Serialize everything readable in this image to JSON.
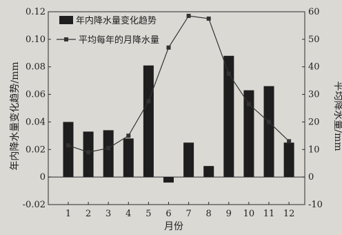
{
  "chart_data": {
    "type": "bar",
    "categories": [
      "1",
      "2",
      "3",
      "4",
      "5",
      "6",
      "7",
      "8",
      "9",
      "10",
      "11",
      "12"
    ],
    "xlabel": "月份",
    "ylabel_left": "年内降水量变化趋势/mm",
    "ylabel_right": "平均降水量/mm",
    "ylim_left": [
      -0.02,
      0.12
    ],
    "ylim_right": [
      -10,
      60
    ],
    "yticks_left": [
      "-0.02",
      "0",
      "0.02",
      "0.04",
      "0.06",
      "0.08",
      "0.10",
      "0.12"
    ],
    "yticks_right": [
      "-10",
      "0",
      "10",
      "20",
      "30",
      "40",
      "50",
      "60"
    ],
    "legend_position": "top-left",
    "series": [
      {
        "name": "年内降水量变化趋势",
        "type": "bar",
        "axis": "left",
        "values": [
          0.04,
          0.033,
          0.034,
          0.028,
          0.081,
          -0.004,
          0.025,
          0.008,
          0.088,
          0.063,
          0.066,
          0.025
        ],
        "color": "#1e1e1e"
      },
      {
        "name": "平均每年的月降水量",
        "type": "line",
        "axis": "right",
        "values": [
          11.5,
          9.0,
          10.5,
          15.0,
          27.5,
          47.0,
          58.5,
          57.5,
          37.5,
          26.5,
          20.0,
          13.0
        ],
        "color": "#333333"
      }
    ]
  }
}
